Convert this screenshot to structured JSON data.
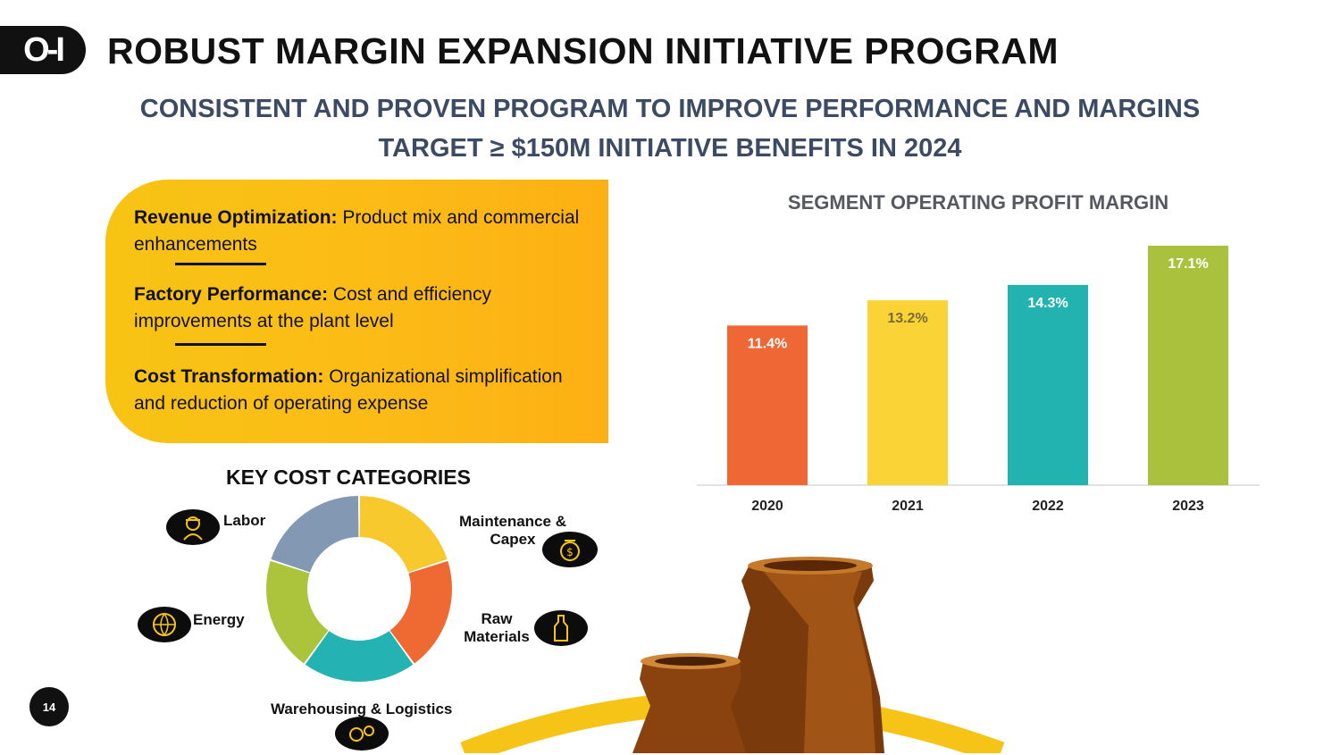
{
  "brand": {
    "logo_text": "O-I"
  },
  "header": {
    "title": "ROBUST MARGIN EXPANSION INITIATIVE PROGRAM",
    "subtitle_line1": "CONSISTENT AND PROVEN PROGRAM TO IMPROVE PERFORMANCE AND MARGINS",
    "subtitle_line2": "TARGET ≥ $150M INITIATIVE BENEFITS IN 2024"
  },
  "initiatives": [
    {
      "label": "Revenue Optimization:",
      "text": "Product mix and commercial enhancements"
    },
    {
      "label": "Factory Performance:",
      "text": "Cost and efficiency improvements at the plant level"
    },
    {
      "label": "Cost Transformation:",
      "text": "Organizational simplification and reduction of operating expense"
    }
  ],
  "cost_categories": {
    "title": "KEY COST CATEGORIES",
    "items": [
      {
        "label": "Maintenance & Capex",
        "icon": "money-bag-icon",
        "color": "#f8c92c"
      },
      {
        "label": "Raw Materials",
        "icon": "bottle-icon",
        "color": "#ef6a32"
      },
      {
        "label": "Warehousing & Logistics",
        "icon": "gears-icon",
        "color": "#25b2b2"
      },
      {
        "label": "Energy",
        "icon": "globe-icon",
        "color": "#abc43c"
      },
      {
        "label": "Labor",
        "icon": "worker-icon",
        "color": "#8398b3"
      }
    ]
  },
  "chart_data": {
    "type": "bar",
    "title": "SEGMENT OPERATING PROFIT MARGIN",
    "categories": [
      "2020",
      "2021",
      "2022",
      "2023"
    ],
    "values": [
      11.4,
      13.2,
      14.3,
      17.1
    ],
    "value_labels": [
      "11.4%",
      "13.2%",
      "14.3%",
      "17.1%"
    ],
    "colors": [
      "#ef6735",
      "#fad337",
      "#22b2b0",
      "#a9c13d"
    ],
    "label_colors": [
      "#ffffff",
      "#7a6a3a",
      "#ffffff",
      "#ffffff"
    ],
    "ylim": [
      0,
      17.1
    ],
    "xlabel": "",
    "ylabel": "",
    "grid": false,
    "legend": "none"
  },
  "page": {
    "number": "14"
  }
}
